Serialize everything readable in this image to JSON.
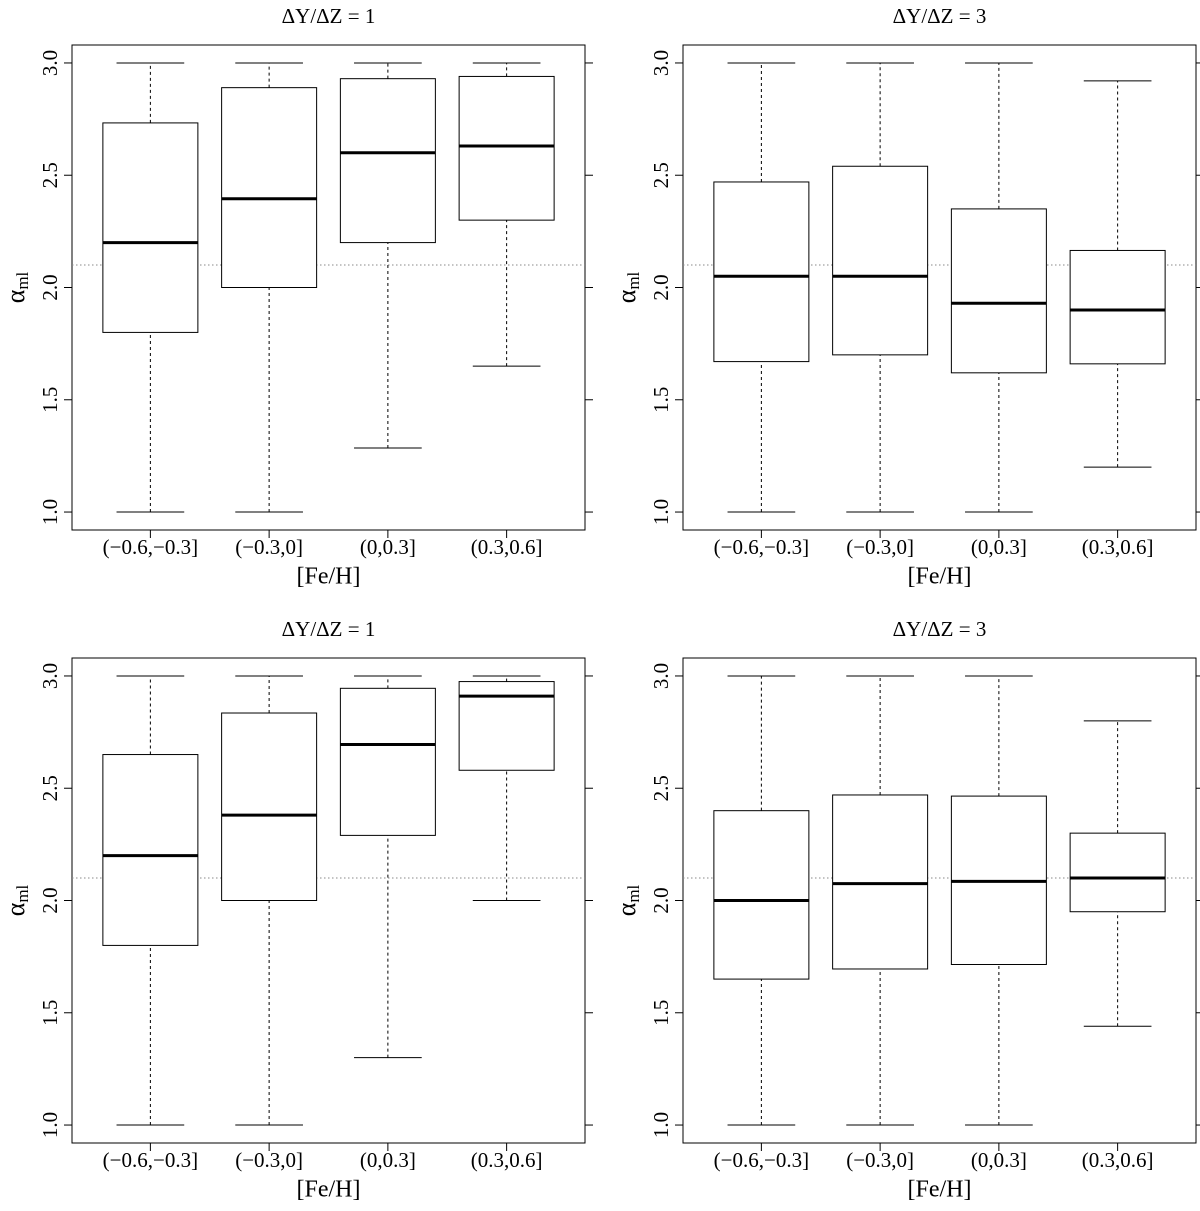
{
  "chart_data": [
    {
      "type": "box",
      "title": "ΔY/ΔZ = 1",
      "xlabel": "[Fe/H]",
      "ylabel": "α",
      "ylabel_subscript": "ml",
      "categories": [
        "(−0.6,−0.3]",
        "(−0.3,0]",
        "(0,0.3]",
        "(0.3,0.6]"
      ],
      "boxes": [
        {
          "whislo": 1.0,
          "q1": 1.8,
          "med": 2.2,
          "q3": 2.733,
          "whishi": 3.0
        },
        {
          "whislo": 1.0,
          "q1": 2.0,
          "med": 2.395,
          "q3": 2.89,
          "whishi": 3.0
        },
        {
          "whislo": 1.285,
          "q1": 2.2,
          "med": 2.6,
          "q3": 2.93,
          "whishi": 3.0
        },
        {
          "whislo": 1.65,
          "q1": 2.3,
          "med": 2.63,
          "q3": 2.94,
          "whishi": 3.0
        }
      ],
      "hline": 2.1,
      "color": "#000000",
      "ylim": [
        0.92,
        3.08
      ],
      "yticks": [
        {
          "value": 1,
          "label": "1.0"
        },
        1.5,
        {
          "value": 2,
          "label": "2.0"
        },
        2.5,
        {
          "value": 3,
          "label": "3.0"
        }
      ]
    },
    {
      "type": "box",
      "title": "ΔY/ΔZ = 3",
      "xlabel": "[Fe/H]",
      "ylabel": "α",
      "ylabel_subscript": "ml",
      "categories": [
        "(−0.6,−0.3]",
        "(−0.3,0]",
        "(0,0.3]",
        "(0.3,0.6]"
      ],
      "boxes": [
        {
          "whislo": 1.0,
          "q1": 1.67,
          "med": 2.05,
          "q3": 2.47,
          "whishi": 3.0
        },
        {
          "whislo": 1.0,
          "q1": 1.7,
          "med": 2.05,
          "q3": 2.54,
          "whishi": 3.0
        },
        {
          "whislo": 1.0,
          "q1": 1.62,
          "med": 1.93,
          "q3": 2.35,
          "whishi": 3.0
        },
        {
          "whislo": 1.2,
          "q1": 1.66,
          "med": 1.9,
          "q3": 2.165,
          "whishi": 2.92
        }
      ],
      "hline": 2.1,
      "color": "#000000",
      "ylim": [
        0.92,
        3.08
      ],
      "yticks": [
        {
          "value": 1,
          "label": "1.0"
        },
        1.5,
        {
          "value": 2,
          "label": "2.0"
        },
        2.5,
        {
          "value": 3,
          "label": "3.0"
        }
      ]
    },
    {
      "type": "box",
      "title": "ΔY/ΔZ = 1",
      "xlabel": "[Fe/H]",
      "ylabel": "α",
      "ylabel_subscript": "ml",
      "categories": [
        "(−0.6,−0.3]",
        "(−0.3,0]",
        "(0,0.3]",
        "(0.3,0.6]"
      ],
      "boxes": [
        {
          "whislo": 1.0,
          "q1": 1.8,
          "med": 2.2,
          "q3": 2.65,
          "whishi": 3.0
        },
        {
          "whislo": 1.0,
          "q1": 2.0,
          "med": 2.38,
          "q3": 2.835,
          "whishi": 3.0
        },
        {
          "whislo": 1.3,
          "q1": 2.29,
          "med": 2.695,
          "q3": 2.945,
          "whishi": 3.0
        },
        {
          "whislo": 2.0,
          "q1": 2.58,
          "med": 2.91,
          "q3": 2.975,
          "whishi": 3.0
        }
      ],
      "hline": 2.1,
      "color": "#000000",
      "ylim": [
        0.92,
        3.08
      ],
      "yticks": [
        {
          "value": 1,
          "label": "1.0"
        },
        1.5,
        {
          "value": 2,
          "label": "2.0"
        },
        2.5,
        {
          "value": 3,
          "label": "3.0"
        }
      ]
    },
    {
      "type": "box",
      "title": "ΔY/ΔZ = 3",
      "xlabel": "[Fe/H]",
      "ylabel": "α",
      "ylabel_subscript": "ml",
      "categories": [
        "(−0.6,−0.3]",
        "(−0.3,0]",
        "(0,0.3]",
        "(0.3,0.6]"
      ],
      "boxes": [
        {
          "whislo": 1.0,
          "q1": 1.65,
          "med": 2.0,
          "q3": 2.4,
          "whishi": 3.0
        },
        {
          "whislo": 1.0,
          "q1": 1.695,
          "med": 2.075,
          "q3": 2.47,
          "whishi": 3.0
        },
        {
          "whislo": 1.0,
          "q1": 1.715,
          "med": 2.085,
          "q3": 2.465,
          "whishi": 3.0
        },
        {
          "whislo": 1.44,
          "q1": 1.95,
          "med": 2.1,
          "q3": 2.3,
          "whishi": 2.8
        }
      ],
      "hline": 2.1,
      "color": "#000000",
      "ylim": [
        0.92,
        3.08
      ],
      "yticks": [
        {
          "value": 1,
          "label": "1.0"
        },
        1.5,
        {
          "value": 2,
          "label": "2.0"
        },
        2.5,
        {
          "value": 3,
          "label": "3.0"
        }
      ]
    }
  ]
}
